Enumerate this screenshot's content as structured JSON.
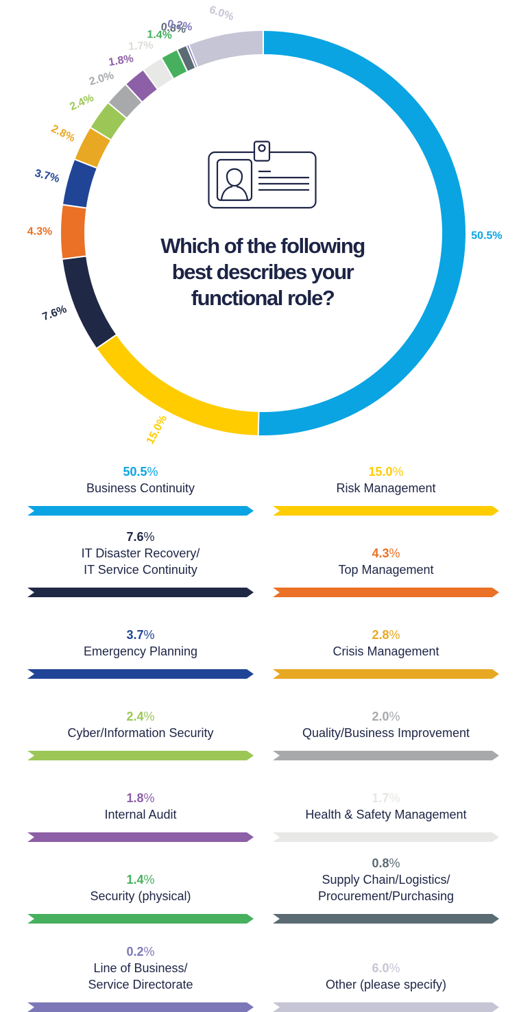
{
  "chart_data": {
    "type": "pie",
    "title": "Which of the following best describes your functional role?",
    "title_lines": [
      "Which of the following",
      "best describes your",
      "functional role?"
    ],
    "unit": "%",
    "slices": [
      {
        "label": "Business Continuity",
        "label_lines": [
          "Business Continuity"
        ],
        "value": 50.5,
        "value_text": "50.5",
        "color": "#0aa4e2"
      },
      {
        "label": "Risk Management",
        "label_lines": [
          "Risk Management"
        ],
        "value": 15.0,
        "value_text": "15.0",
        "color": "#ffcc00"
      },
      {
        "label": "IT Disaster Recovery/ IT Service Continuity",
        "label_lines": [
          "IT Disaster Recovery/",
          "IT Service Continuity"
        ],
        "value": 7.6,
        "value_text": "7.6",
        "color": "#1f2845"
      },
      {
        "label": "Top Management",
        "label_lines": [
          "Top Management"
        ],
        "value": 4.3,
        "value_text": "4.3",
        "color": "#ea7125"
      },
      {
        "label": "Emergency Planning",
        "label_lines": [
          "Emergency Planning"
        ],
        "value": 3.7,
        "value_text": "3.7",
        "color": "#214596"
      },
      {
        "label": "Crisis Management",
        "label_lines": [
          "Crisis Management"
        ],
        "value": 2.8,
        "value_text": "2.8",
        "color": "#e8a823"
      },
      {
        "label": "Cyber/Information Security",
        "label_lines": [
          "Cyber/Information Security"
        ],
        "value": 2.4,
        "value_text": "2.4",
        "color": "#9cc757"
      },
      {
        "label": "Quality/Business Improvement",
        "label_lines": [
          "Quality/Business Improvement"
        ],
        "value": 2.0,
        "value_text": "2.0",
        "color": "#a7a9ab"
      },
      {
        "label": "Internal Audit",
        "label_lines": [
          "Internal Audit"
        ],
        "value": 1.8,
        "value_text": "1.8",
        "color": "#8d5fa6"
      },
      {
        "label": "Health & Safety Management",
        "label_lines": [
          "Health & Safety Management"
        ],
        "value": 1.7,
        "value_text": "1.7",
        "color": "#e8e8e6"
      },
      {
        "label": "Security (physical)",
        "label_lines": [
          "Security (physical)"
        ],
        "value": 1.4,
        "value_text": "1.4",
        "color": "#46b05e"
      },
      {
        "label": "Supply Chain/Logistics/ Procurement/Purchasing",
        "label_lines": [
          "Supply Chain/Logistics/",
          "Procurement/Purchasing"
        ],
        "value": 0.8,
        "value_text": "0.8",
        "color": "#5b6b73"
      },
      {
        "label": "Line of Business/ Service Directorate",
        "label_lines": [
          "Line of Business/",
          "Service Directorate"
        ],
        "value": 0.2,
        "value_text": "0.2",
        "color": "#7c78b8"
      },
      {
        "label": "Other (please specify)",
        "label_lines": [
          "Other (please specify)"
        ],
        "value": 6.0,
        "value_text": "6.0",
        "color": "#c6c5d6"
      }
    ],
    "legend_placement": "bottom"
  },
  "icon": "id-badge-icon",
  "text_color": "#1d2445"
}
